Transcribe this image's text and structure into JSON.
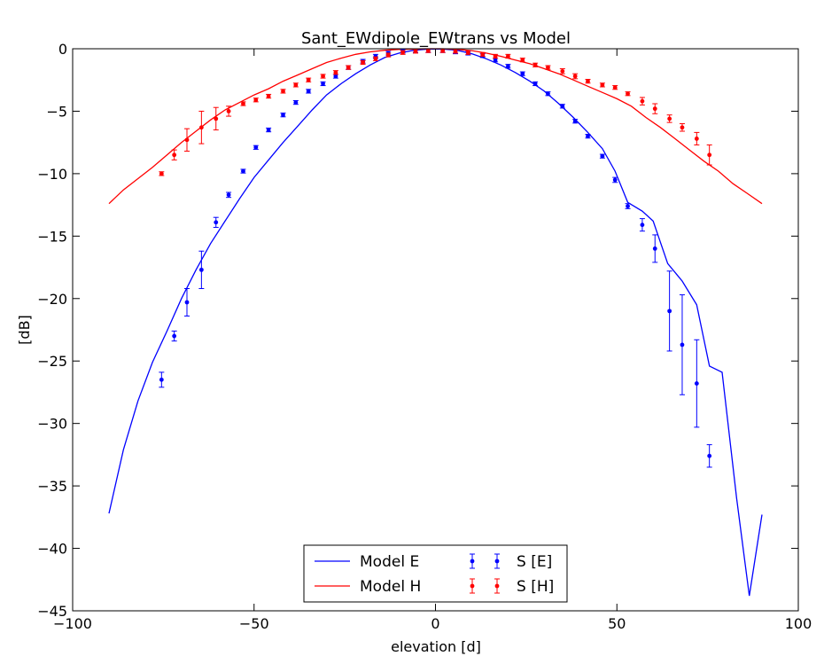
{
  "chart_data": {
    "type": "line",
    "title": "Sant_EWdipole_EWtrans vs Model",
    "xlabel": "elevation [d]",
    "ylabel": "[dB]",
    "xlim": [
      -100,
      100
    ],
    "ylim": [
      -45,
      0
    ],
    "xticks": [
      -100,
      -50,
      0,
      50,
      100
    ],
    "yticks": [
      0,
      -5,
      -10,
      -15,
      -20,
      -25,
      -30,
      -35,
      -40,
      -45
    ],
    "xtick_labels": [
      "−100",
      "−50",
      "0",
      "50",
      "100"
    ],
    "ytick_labels": [
      "0",
      "−5",
      "−10",
      "−15",
      "−20",
      "−25",
      "−30",
      "−35",
      "−40",
      "−45"
    ],
    "grid": false,
    "legend_position": "bottom-center",
    "lines": [
      {
        "name": "Model E",
        "color": "#0000ff",
        "x": [
          -90,
          -86,
          -82,
          -78,
          -74,
          -70,
          -66,
          -62,
          -58,
          -54,
          -50,
          -46,
          -42,
          -38,
          -34,
          -30,
          -26,
          -22,
          -18,
          -14,
          -10,
          -6,
          -2,
          2,
          6,
          10,
          14,
          18,
          22,
          26,
          30,
          34,
          38,
          42,
          46,
          49.5,
          53,
          57,
          60,
          64,
          68,
          72,
          75.5,
          79,
          83,
          86.5,
          90
        ],
        "y": [
          -37.2,
          -32.1,
          -28.2,
          -25.1,
          -22.6,
          -20.0,
          -17.7,
          -15.6,
          -13.8,
          -12.0,
          -10.3,
          -8.9,
          -7.5,
          -6.2,
          -4.9,
          -3.7,
          -2.8,
          -2.0,
          -1.3,
          -0.7,
          -0.35,
          -0.12,
          -0.02,
          -0.02,
          -0.12,
          -0.4,
          -0.8,
          -1.3,
          -1.9,
          -2.6,
          -3.4,
          -4.4,
          -5.5,
          -6.7,
          -8.0,
          -9.8,
          -12.3,
          -13.0,
          -13.8,
          -17.2,
          -18.6,
          -20.5,
          -25.4,
          -25.9,
          -36.0,
          -43.8,
          -37.3
        ]
      },
      {
        "name": "Model H",
        "color": "#ff0000",
        "x": [
          -90,
          -86,
          -82,
          -78,
          -74,
          -70,
          -66,
          -62,
          -58,
          -54,
          -50,
          -46,
          -42,
          -38,
          -34,
          -30,
          -26,
          -22,
          -18,
          -14,
          -10,
          -6,
          -2,
          2,
          6,
          10,
          14,
          18,
          22,
          26,
          30,
          34,
          38,
          42,
          46,
          50,
          54,
          58,
          62,
          66,
          70,
          74,
          78,
          82,
          86,
          90
        ],
        "y": [
          -12.4,
          -11.3,
          -10.4,
          -9.5,
          -8.5,
          -7.5,
          -6.6,
          -5.7,
          -4.9,
          -4.3,
          -3.7,
          -3.2,
          -2.6,
          -2.1,
          -1.6,
          -1.1,
          -0.75,
          -0.45,
          -0.25,
          -0.12,
          -0.05,
          -0.02,
          0.0,
          0.0,
          -0.05,
          -0.15,
          -0.35,
          -0.6,
          -0.9,
          -1.2,
          -1.6,
          -2.0,
          -2.5,
          -3.0,
          -3.5,
          -4.0,
          -4.6,
          -5.5,
          -6.3,
          -7.2,
          -8.1,
          -9.0,
          -9.8,
          -10.8,
          -11.6,
          -12.4
        ]
      }
    ],
    "errorbars": [
      {
        "name": "S [E]",
        "color": "#0000ff",
        "x": [
          -75.5,
          -72,
          -68.5,
          -64.5,
          -60.5,
          -57,
          -53,
          -49.5,
          -46,
          -42,
          -38.5,
          -35,
          -31,
          -27.5,
          -24,
          -20,
          -16.5,
          -13,
          -9,
          -5.5,
          -2,
          2,
          5.5,
          9,
          13,
          16.5,
          20,
          24,
          27.5,
          31,
          35,
          38.5,
          42,
          46,
          49.5,
          53,
          57,
          60.5,
          64.5,
          68,
          72,
          75.5
        ],
        "y": [
          -26.5,
          -23.0,
          -20.3,
          -17.7,
          -13.9,
          -11.7,
          -9.8,
          -7.9,
          -6.5,
          -5.3,
          -4.3,
          -3.4,
          -2.8,
          -2.2,
          -1.5,
          -1.0,
          -0.6,
          -0.35,
          -0.2,
          -0.15,
          -0.15,
          -0.15,
          -0.25,
          -0.35,
          -0.55,
          -0.9,
          -1.4,
          -2.0,
          -2.8,
          -3.6,
          -4.6,
          -5.8,
          -7.0,
          -8.6,
          -10.5,
          -12.6,
          -14.1,
          -16.0,
          -21.0,
          -23.7,
          -26.8,
          -32.6
        ],
        "err": [
          0.6,
          0.4,
          1.1,
          1.5,
          0.4,
          0.2,
          0.15,
          0.15,
          0.15,
          0.15,
          0.15,
          0.15,
          0.15,
          0.15,
          0.15,
          0.15,
          0.15,
          0.15,
          0.15,
          0.15,
          0.15,
          0.15,
          0.15,
          0.15,
          0.15,
          0.15,
          0.15,
          0.15,
          0.15,
          0.15,
          0.15,
          0.15,
          0.15,
          0.15,
          0.2,
          0.2,
          0.5,
          1.1,
          3.2,
          4.0,
          3.5,
          0.9
        ]
      },
      {
        "name": "S [H]",
        "color": "#ff0000",
        "x": [
          -75.5,
          -72,
          -68.5,
          -64.5,
          -60.5,
          -57,
          -53,
          -49.5,
          -46,
          -42,
          -38.5,
          -35,
          -31,
          -27.5,
          -24,
          -20,
          -16.5,
          -13,
          -9,
          -5.5,
          -2,
          2,
          5.5,
          9,
          13,
          16.5,
          20,
          24,
          27.5,
          31,
          35,
          38.5,
          42,
          46,
          49.5,
          53,
          57,
          60.5,
          64.5,
          68,
          72,
          75.5
        ],
        "y": [
          -10.0,
          -8.5,
          -7.3,
          -6.3,
          -5.6,
          -5.0,
          -4.4,
          -4.1,
          -3.8,
          -3.4,
          -2.9,
          -2.5,
          -2.2,
          -1.9,
          -1.5,
          -1.1,
          -0.8,
          -0.5,
          -0.3,
          -0.2,
          -0.15,
          -0.15,
          -0.2,
          -0.3,
          -0.45,
          -0.6,
          -0.6,
          -0.9,
          -1.3,
          -1.5,
          -1.8,
          -2.2,
          -2.6,
          -2.9,
          -3.1,
          -3.6,
          -4.2,
          -4.8,
          -5.6,
          -6.3,
          -7.2,
          -8.5
        ],
        "err": [
          0.15,
          0.4,
          0.9,
          1.3,
          0.9,
          0.4,
          0.15,
          0.15,
          0.15,
          0.15,
          0.15,
          0.15,
          0.15,
          0.15,
          0.15,
          0.15,
          0.15,
          0.15,
          0.15,
          0.15,
          0.15,
          0.15,
          0.15,
          0.15,
          0.15,
          0.15,
          0.15,
          0.15,
          0.15,
          0.15,
          0.2,
          0.2,
          0.15,
          0.15,
          0.15,
          0.15,
          0.3,
          0.4,
          0.3,
          0.3,
          0.5,
          0.8
        ]
      }
    ],
    "legend": [
      "Model E",
      "Model H",
      "S [E]",
      "S [H]"
    ]
  }
}
